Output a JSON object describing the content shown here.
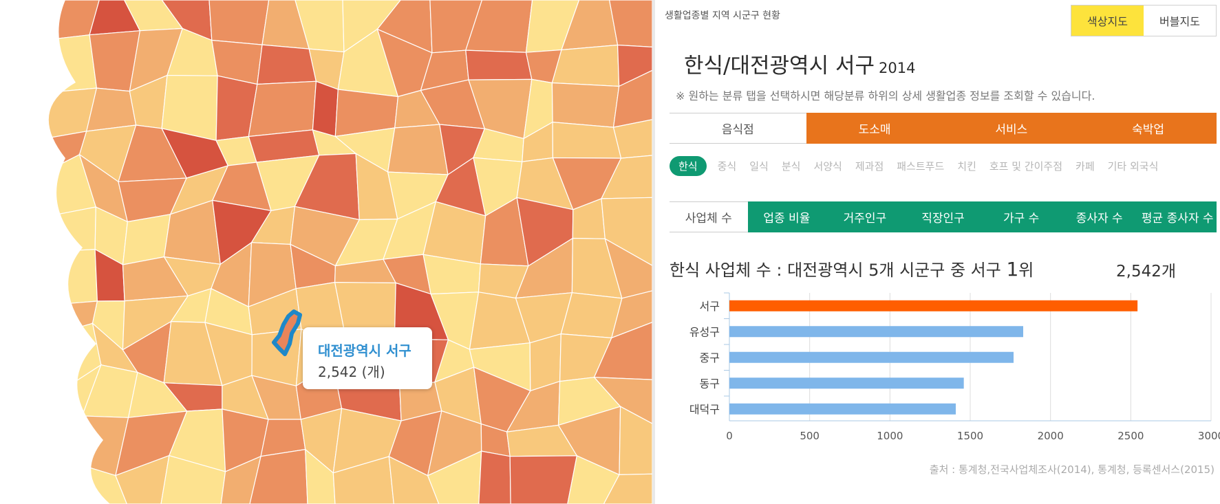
{
  "panel": {
    "subtitle": "생활업종별 지역 시군구 현황",
    "map_toggle": [
      "색상지도",
      "버블지도"
    ],
    "title": "한식/대전광역시 서구",
    "year": "2014",
    "note": "※ 원하는 분류 탭을 선택하시면 해당분류 하위의 상세 생활업종 정보를 조회할 수 있습니다.",
    "category_tabs": [
      "음식점",
      "도소매",
      "서비스",
      "숙박업"
    ],
    "subcategories": [
      "한식",
      "중식",
      "일식",
      "분식",
      "서양식",
      "제과점",
      "패스트푸드",
      "치킨",
      "호프 및 간이주점",
      "카페",
      "기타 외국식"
    ],
    "metric_tabs": [
      "사업체 수",
      "업종 비율",
      "거주인구",
      "직장인구",
      "가구 수",
      "종사자 수",
      "평균 종사자 수"
    ],
    "summary_prefix": "한식 사업체 수 : 대전광역시 5개 시군구 중 서구 ",
    "summary_rank": "1",
    "summary_suffix": "위",
    "total": "2,542개",
    "source": "출처 : 통계청,전국사업체조사(2014), 통계청, 등록센서스(2015)"
  },
  "map": {
    "tooltip_title": "대전광역시 서구",
    "tooltip_value": "2,542 (개)",
    "palette": [
      "#fde28f",
      "#f8c87c",
      "#f2ae70",
      "#eb9060",
      "#e06b4e",
      "#d6533f"
    ],
    "highlight": "#1e88c8"
  },
  "colors": {
    "orange": "#e8741c",
    "green": "#0f9a72",
    "yellow": "#fde33c",
    "bar_highlight": "#ff5e00",
    "bar_normal": "#7fb6ea"
  },
  "chart_data": {
    "type": "bar",
    "orientation": "horizontal",
    "categories": [
      "서구",
      "유성구",
      "중구",
      "동구",
      "대덕구"
    ],
    "values": [
      2542,
      1830,
      1770,
      1460,
      1410
    ],
    "highlight_index": 0,
    "xlim": [
      0,
      3000
    ],
    "xticks": [
      "0",
      "500",
      "1000",
      "1500",
      "2000",
      "2500",
      "3000"
    ],
    "grid": true
  }
}
